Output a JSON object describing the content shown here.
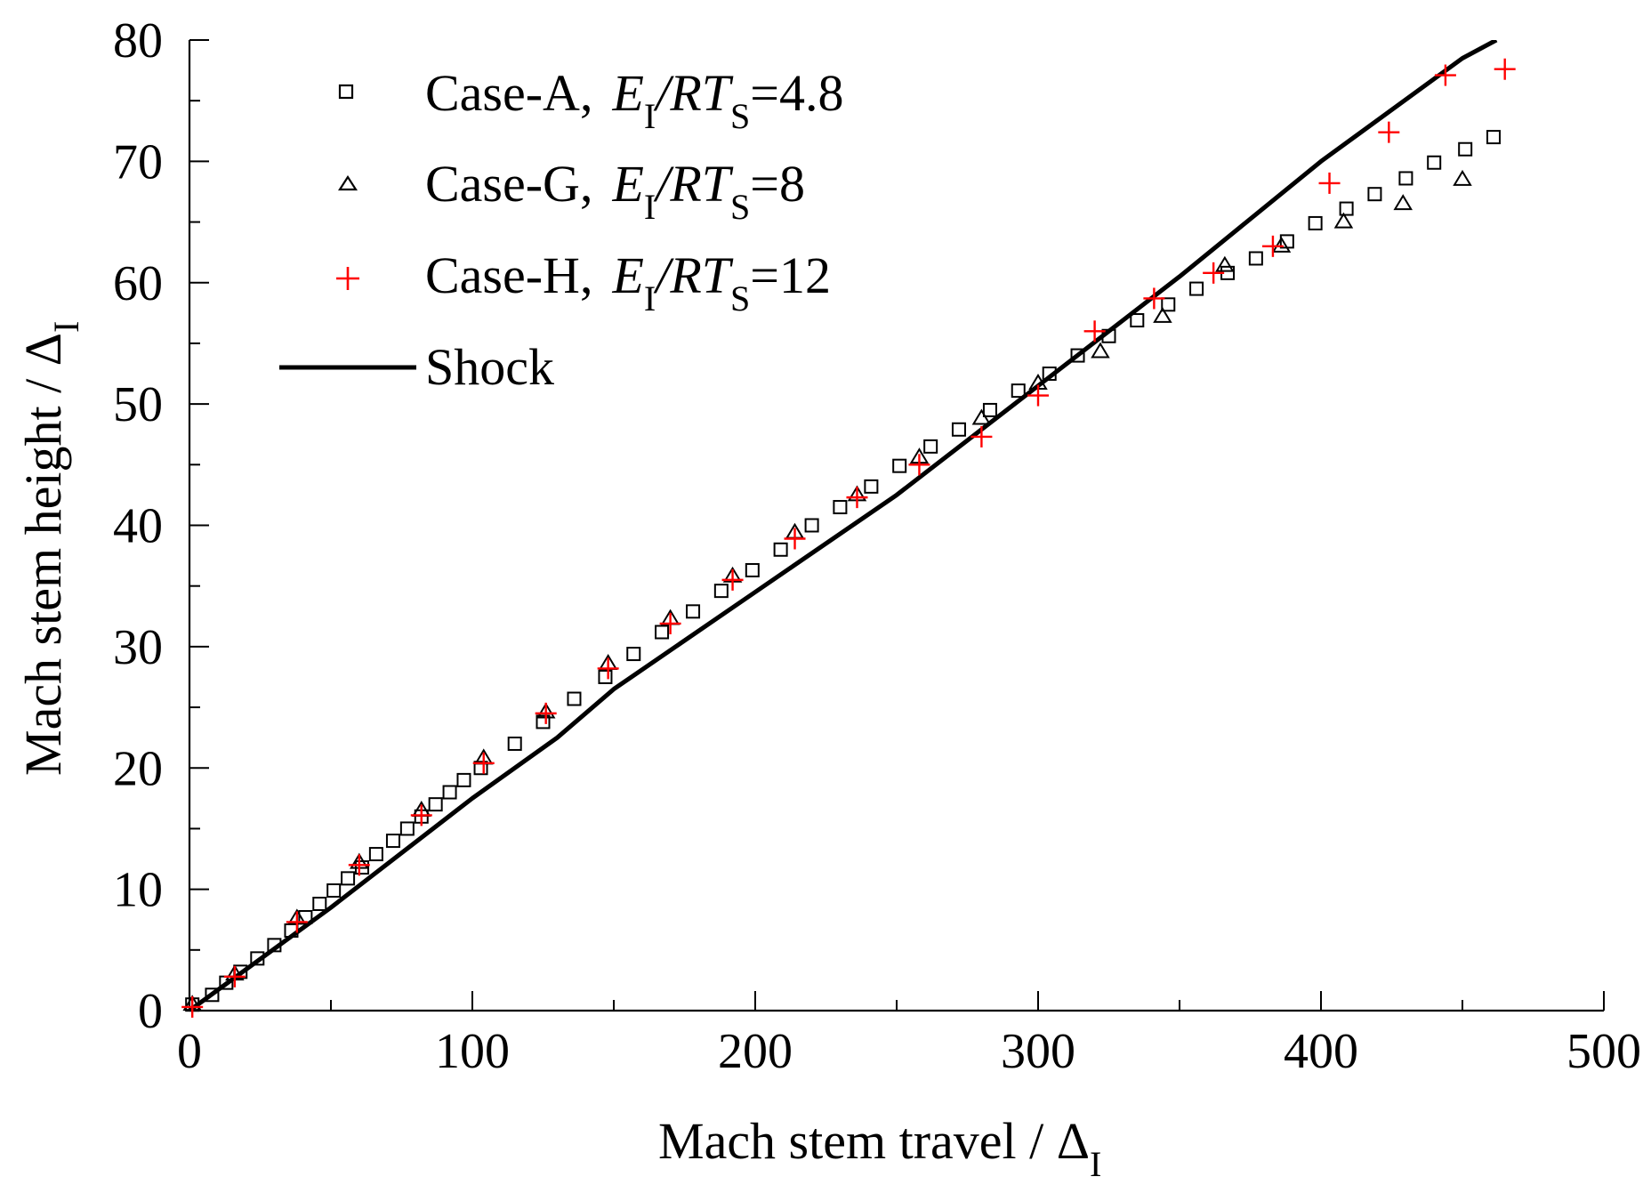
{
  "chart_data": {
    "type": "scatter",
    "xlabel": "Mach stem travel /  Δ",
    "xlabel_sub": "I",
    "ylabel": "Mach stem height / Δ",
    "ylabel_sub": "I",
    "xlim": [
      0,
      500
    ],
    "ylim": [
      0,
      80
    ],
    "xticks": [
      0,
      100,
      200,
      300,
      400,
      500
    ],
    "yticks": [
      0,
      10,
      20,
      30,
      40,
      50,
      60,
      70,
      80
    ],
    "legend_position": "top-left",
    "grid": false,
    "series": [
      {
        "name": "Case-A,  E/RT=4.8",
        "label_parts": {
          "case": "Case-A,",
          "e": "E",
          "esub": "I",
          "rt": "/RT",
          "rtsub": "S",
          "value": "=4.8"
        },
        "marker": "square",
        "color": "#000000",
        "x": [
          1,
          8,
          13,
          18,
          24,
          30,
          36,
          41,
          46,
          51,
          56,
          61,
          66,
          72,
          77,
          82,
          87,
          92,
          97,
          103,
          115,
          125,
          136,
          147,
          157,
          167,
          178,
          188,
          199,
          209,
          220,
          230,
          241,
          251,
          262,
          272,
          283,
          293,
          304,
          314,
          325,
          335,
          346,
          356,
          367,
          377,
          388,
          398,
          409,
          419,
          430,
          440,
          451,
          461
        ],
        "y": [
          0.5,
          1.3,
          2.3,
          3.2,
          4.3,
          5.4,
          6.6,
          7.7,
          8.8,
          9.9,
          10.9,
          11.8,
          12.9,
          14.0,
          15.0,
          16.0,
          17.0,
          18.0,
          19.0,
          20.0,
          22.0,
          23.8,
          25.7,
          27.5,
          29.4,
          31.2,
          32.9,
          34.6,
          36.3,
          38.0,
          40.0,
          41.5,
          43.2,
          44.9,
          46.5,
          47.9,
          49.5,
          51.1,
          52.5,
          54.0,
          55.6,
          56.9,
          58.2,
          59.5,
          60.8,
          62.0,
          63.4,
          64.9,
          66.1,
          67.3,
          68.6,
          69.9,
          71.0,
          72.0
        ]
      },
      {
        "name": "Case-G,  E/RT=8",
        "label_parts": {
          "case": "Case-G,",
          "e": "E",
          "esub": "I",
          "rt": "/RT",
          "rtsub": "S",
          "value": "=8"
        },
        "marker": "triangle",
        "color": "#000000",
        "x": [
          1,
          16,
          38,
          60,
          82,
          104,
          126,
          148,
          170,
          192,
          214,
          236,
          258,
          280,
          300,
          322,
          344,
          366,
          386,
          408,
          429,
          450
        ],
        "y": [
          0.5,
          3.0,
          7.6,
          12.2,
          16.5,
          20.8,
          24.6,
          28.6,
          32.3,
          35.8,
          39.4,
          42.5,
          45.6,
          48.8,
          51.7,
          54.3,
          57.2,
          61.4,
          63.0,
          65.0,
          66.5,
          68.5
        ]
      },
      {
        "name": "Case-H,  E/RT=12",
        "label_parts": {
          "case": "Case-H,",
          "e": "E",
          "esub": "I",
          "rt": "/RT",
          "rtsub": "S",
          "value": "=12"
        },
        "marker": "plus",
        "color": "#ff0000",
        "x": [
          1,
          16,
          38,
          60,
          82,
          104,
          126,
          148,
          170,
          192,
          214,
          236,
          258,
          280,
          300,
          320,
          341,
          362,
          383,
          403,
          424,
          444,
          465
        ],
        "y": [
          0.3,
          2.8,
          7.3,
          12.0,
          16.1,
          20.4,
          24.5,
          28.2,
          31.9,
          35.5,
          38.9,
          42.3,
          45.0,
          47.3,
          50.7,
          56.0,
          58.7,
          60.8,
          63.0,
          68.2,
          72.4,
          77.1,
          77.6
        ]
      },
      {
        "name": "Shock",
        "label_parts": {
          "case": "Shock"
        },
        "marker": "line",
        "color": "#000000",
        "x": [
          0,
          50,
          100,
          130,
          150,
          200,
          250,
          300,
          350,
          400,
          450,
          462
        ],
        "y": [
          0,
          8.5,
          17.5,
          22.5,
          26.5,
          34.5,
          42.5,
          51.5,
          60.5,
          70.0,
          78.5,
          80.0
        ]
      }
    ]
  }
}
